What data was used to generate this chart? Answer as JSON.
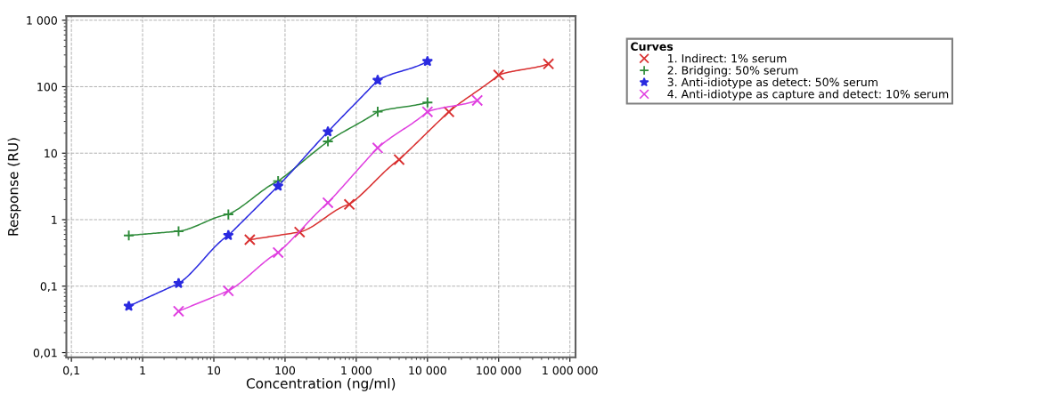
{
  "chart_data": {
    "type": "line",
    "xlabel": "Concentration (ng/ml)",
    "ylabel": "Response (RU)",
    "legend_title": "Curves",
    "log": "xy",
    "grid": true,
    "legend": "top right",
    "xlim": [
      0.085,
      1200000
    ],
    "ylim": [
      0.0085,
      1150
    ],
    "xticks": [
      {
        "value": 0.1,
        "label": "0,1"
      },
      1,
      10,
      100,
      {
        "value": 1000,
        "label": "1 000"
      },
      {
        "value": 10000,
        "label": "10 000"
      },
      {
        "value": 100000,
        "label": "100 000"
      },
      {
        "value": 1000000,
        "label": "1 000 000"
      }
    ],
    "yticks": [
      {
        "value": 0.01,
        "label": "0,01"
      },
      {
        "value": 0.1,
        "label": "0,1"
      },
      1,
      10,
      100,
      {
        "value": 1000,
        "label": "1 000"
      }
    ],
    "line_style": "solid",
    "series": [
      {
        "name": "1. Indirect: 1% serum",
        "color": "#d93030",
        "marker": "cross",
        "x": [
          32,
          160,
          800,
          4000,
          20000,
          100000,
          500000
        ],
        "values": [
          0.5,
          0.65,
          1.7,
          8,
          42,
          150,
          220
        ]
      },
      {
        "name": "2. Bridging: 50% serum",
        "color": "#2e8b3a",
        "marker": "plus",
        "x": [
          0.64,
          3.2,
          16,
          80,
          400,
          2000,
          10000
        ],
        "values": [
          0.58,
          0.67,
          1.2,
          3.8,
          15,
          42,
          58
        ]
      },
      {
        "name": "3. Anti-idiotype as detect: 50% serum",
        "color": "#2a2ae0",
        "marker": "star",
        "x": [
          0.64,
          3.2,
          16,
          80,
          400,
          2000,
          10000
        ],
        "values": [
          0.05,
          0.11,
          0.58,
          3.2,
          21,
          125,
          240
        ]
      },
      {
        "name": "4. Anti-idiotype as capture and detect: 10% serum",
        "color": "#e040e0",
        "marker": "cross",
        "x": [
          3.2,
          16,
          80,
          400,
          2000,
          10000,
          50000
        ],
        "values": [
          0.042,
          0.085,
          0.32,
          1.8,
          12,
          42,
          62
        ]
      }
    ]
  }
}
